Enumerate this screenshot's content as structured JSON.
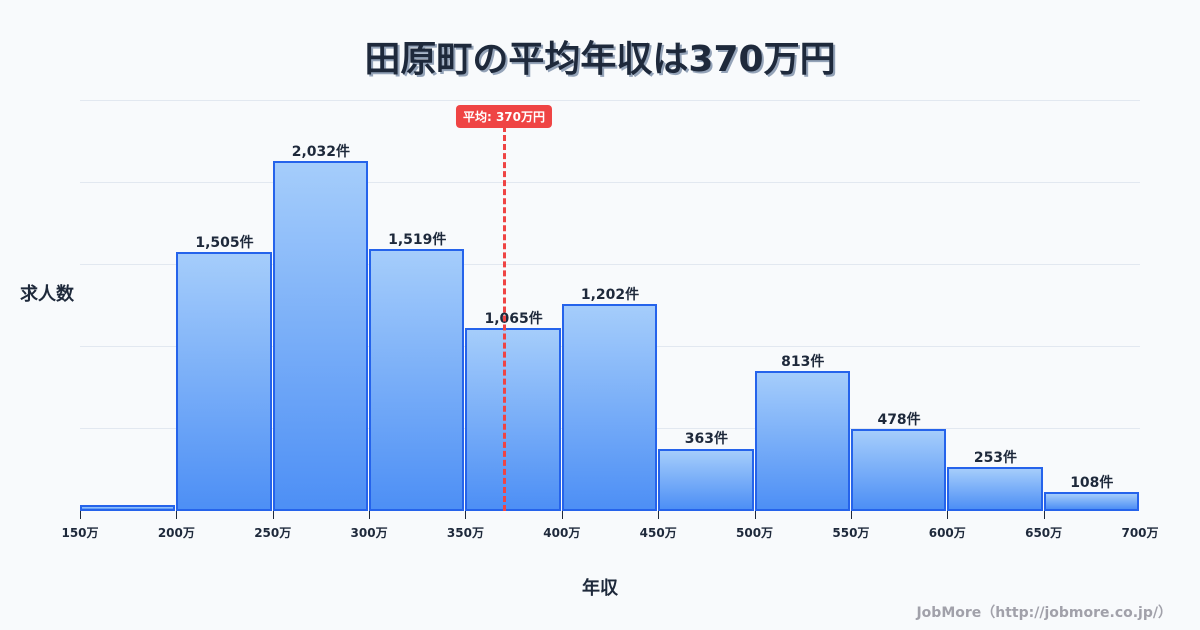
{
  "title": "田原町の平均年収は370万円",
  "ylabel": "求人数",
  "xlabel": "年収",
  "credit": "JobMore（http://jobmore.co.jp/）",
  "average": {
    "value": 370,
    "label": "平均: 370万円",
    "color": "#ef4444"
  },
  "colors": {
    "bar_border": "#2563eb",
    "bar_top": "#a5cdfb",
    "bar_bottom": "#4d8ff5",
    "grid": "#e2e8f0",
    "text": "#1e293b"
  },
  "chart_data": {
    "type": "bar",
    "title": "田原町の平均年収は370万円",
    "xlabel": "年収",
    "ylabel": "求人数",
    "categories": [
      "150-200万",
      "200-250万",
      "250-300万",
      "300-350万",
      "350-400万",
      "400-450万",
      "450-500万",
      "500-550万",
      "550-600万",
      "600-650万",
      "650-700万"
    ],
    "bin_edges": [
      150,
      200,
      250,
      300,
      350,
      400,
      450,
      500,
      550,
      600,
      650,
      700
    ],
    "values": [
      35,
      1505,
      2032,
      1519,
      1065,
      1202,
      363,
      813,
      478,
      253,
      108
    ],
    "data_labels": [
      "",
      "1,505件",
      "2,032件",
      "1,519件",
      "1,065件",
      "1,202件",
      "363件",
      "813件",
      "478件",
      "253件",
      "108件"
    ],
    "tick_labels": [
      "150万",
      "200万",
      "250万",
      "300万",
      "350万",
      "400万",
      "450万",
      "500万",
      "550万",
      "600万",
      "650万",
      "700万"
    ],
    "ylim": [
      0,
      2387
    ],
    "grid": true,
    "annotations": [
      {
        "type": "vline",
        "x": 370,
        "label": "平均: 370万円"
      }
    ]
  }
}
